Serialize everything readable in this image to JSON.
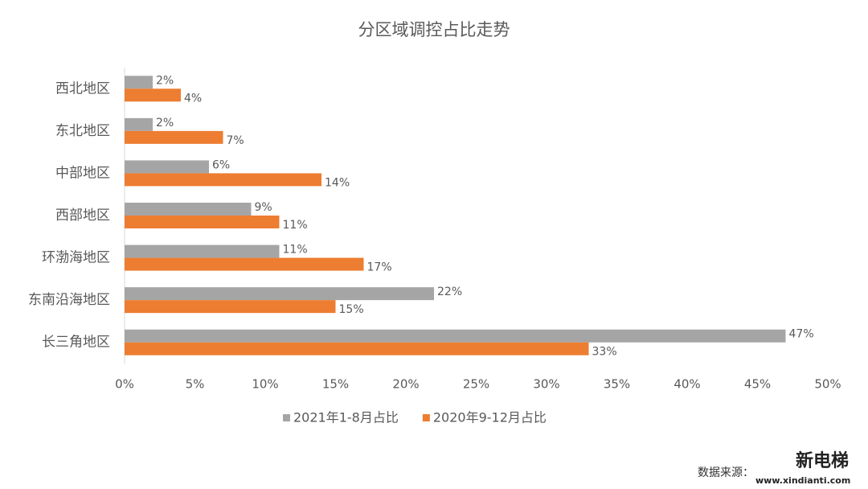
{
  "chart_data": {
    "type": "hbar",
    "title": "分区域调控占比走势",
    "categories": [
      "西北地区",
      "东北地区",
      "中部地区",
      "西部地区",
      "环渤海地区",
      "东南沿海地区",
      "长三角地区"
    ],
    "series": [
      {
        "name": "2021年1-8月占比",
        "color": "#a5a5a5",
        "values": [
          2,
          2,
          6,
          9,
          11,
          22,
          47
        ],
        "value_labels": [
          "2%",
          "2%",
          "6%",
          "9%",
          "11%",
          "22%",
          "47%"
        ]
      },
      {
        "name": "2020年9-12月占比",
        "color": "#ed7d31",
        "values": [
          4,
          7,
          14,
          11,
          17,
          15,
          33
        ],
        "value_labels": [
          "4%",
          "7%",
          "14%",
          "11%",
          "17%",
          "15%",
          "33%"
        ]
      }
    ],
    "xlim": [
      0,
      50
    ],
    "xticks": [
      {
        "value": 0,
        "label": "0%"
      },
      {
        "value": 5,
        "label": "5%"
      },
      {
        "value": 10,
        "label": "10%"
      },
      {
        "value": 15,
        "label": "15%"
      },
      {
        "value": 20,
        "label": "20%"
      },
      {
        "value": 25,
        "label": "25%"
      },
      {
        "value": 30,
        "label": "30%"
      },
      {
        "value": 35,
        "label": "35%"
      },
      {
        "value": 40,
        "label": "40%"
      },
      {
        "value": 45,
        "label": "45%"
      },
      {
        "value": 50,
        "label": "50%"
      }
    ],
    "legend": "bottom",
    "source": "数据来源：",
    "logo": {
      "name": "新电梯",
      "url": "www.xindianti.com"
    }
  }
}
